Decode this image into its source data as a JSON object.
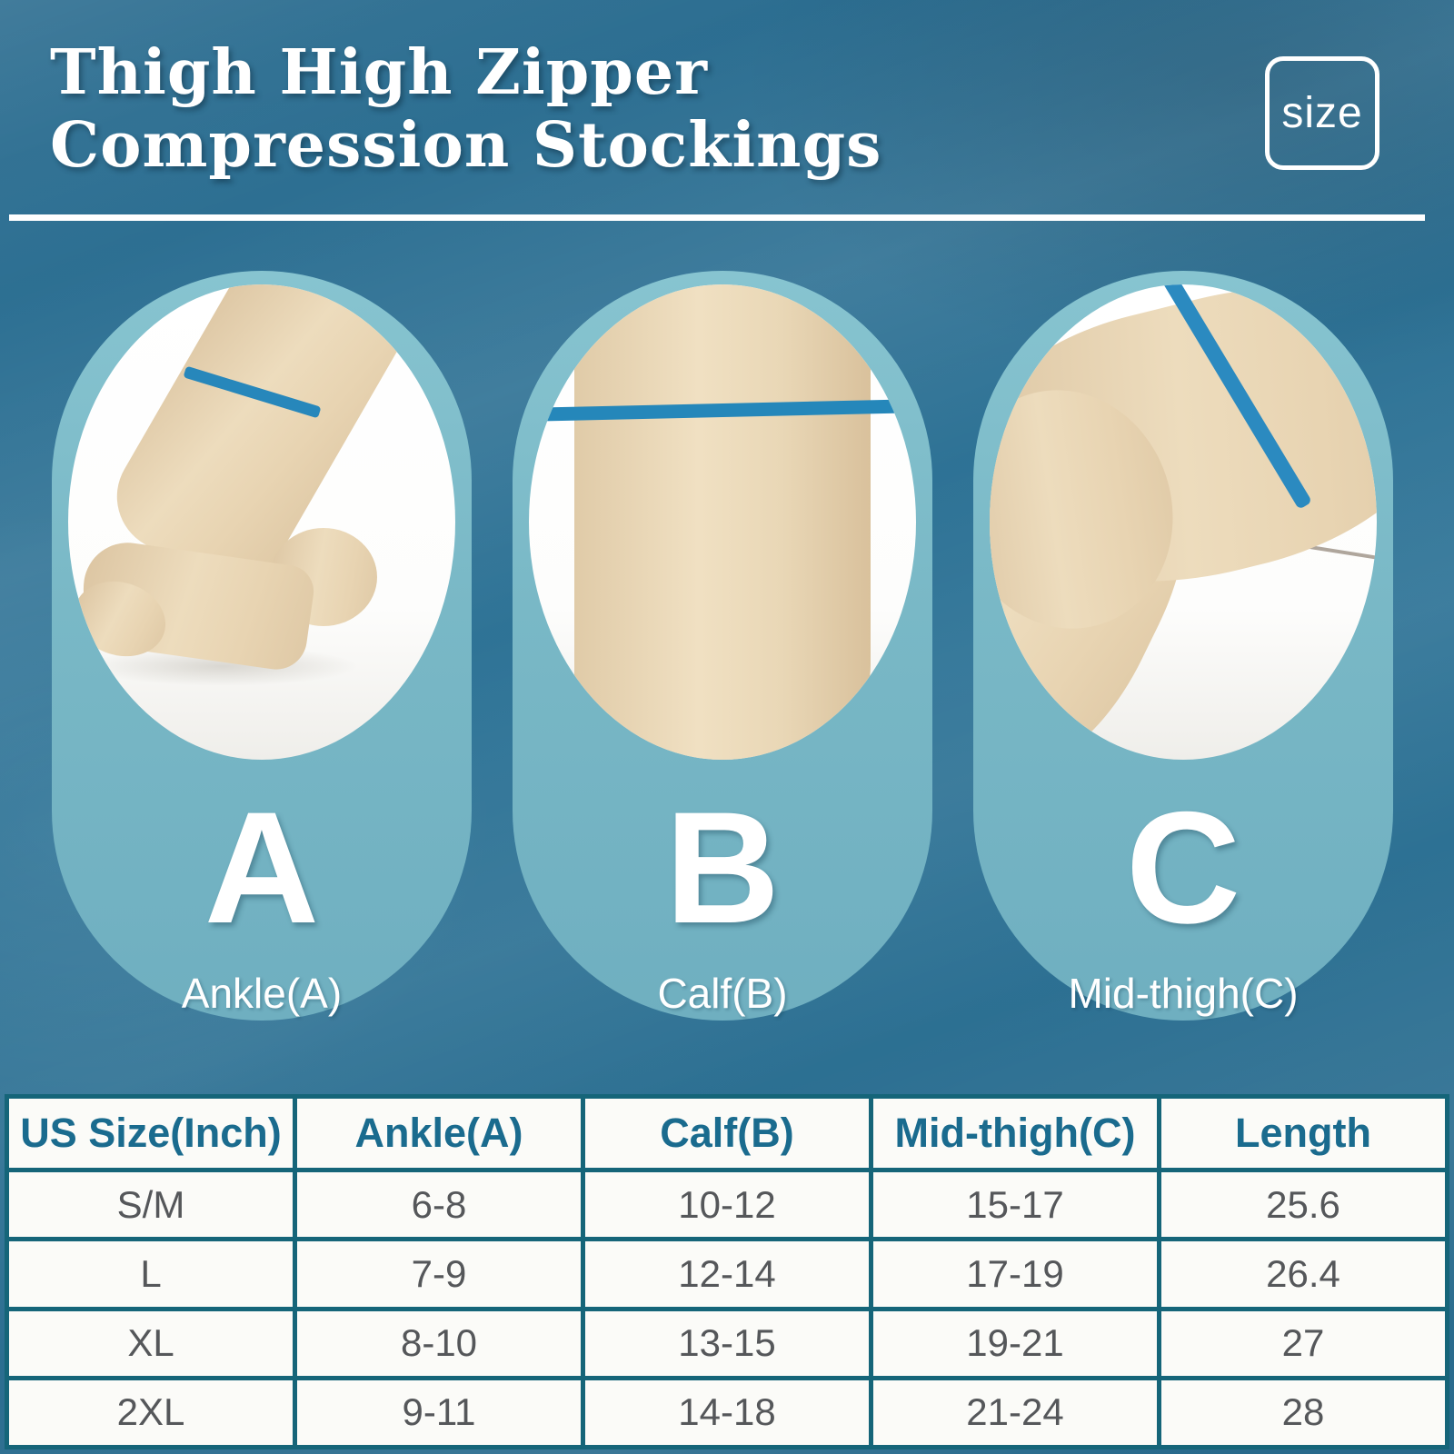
{
  "title": {
    "line1": "Thigh High Zipper",
    "line2": "Compression Stockings"
  },
  "size_badge": {
    "label": "size"
  },
  "measurement_pills": [
    {
      "letter": "A",
      "label": "Ankle(A)",
      "photo_icon": "ankle-with-measuring-band"
    },
    {
      "letter": "B",
      "label": "Calf(B)",
      "photo_icon": "calf-with-measuring-band"
    },
    {
      "letter": "C",
      "label": "Mid-thigh(C)",
      "photo_icon": "mid-thigh-with-measuring-band"
    }
  ],
  "size_table": {
    "headers": [
      "US Size(Inch)",
      "Ankle(A)",
      "Calf(B)",
      "Mid-thigh(C)",
      "Length"
    ],
    "rows": [
      [
        "S/M",
        "6-8",
        "10-12",
        "15-17",
        "25.6"
      ],
      [
        "L",
        "7-9",
        "12-14",
        "17-19",
        "26.4"
      ],
      [
        "XL",
        "8-10",
        "13-15",
        "19-21",
        "27"
      ],
      [
        "2XL",
        "9-11",
        "14-18",
        "21-24",
        "28"
      ]
    ]
  },
  "chart_data": {
    "type": "table",
    "columns": [
      "US Size(Inch)",
      "Ankle(A)",
      "Calf(B)",
      "Mid-thigh(C)",
      "Length"
    ],
    "rows": [
      [
        "S/M",
        "6-8",
        "10-12",
        "15-17",
        "25.6"
      ],
      [
        "L",
        "7-9",
        "12-14",
        "17-19",
        "26.4"
      ],
      [
        "XL",
        "8-10",
        "13-15",
        "19-21",
        "27"
      ],
      [
        "2XL",
        "9-11",
        "14-18",
        "21-24",
        "28"
      ]
    ]
  },
  "colors": {
    "background": "#2d7094",
    "capsule": "#79b8c6",
    "measuring_band_blue": "#2587ba",
    "table_border": "#156579",
    "header_text": "#1a6b8e",
    "cell_text": "#55575a",
    "stocking_skin": "#ead8ba",
    "white": "#ffffff"
  }
}
